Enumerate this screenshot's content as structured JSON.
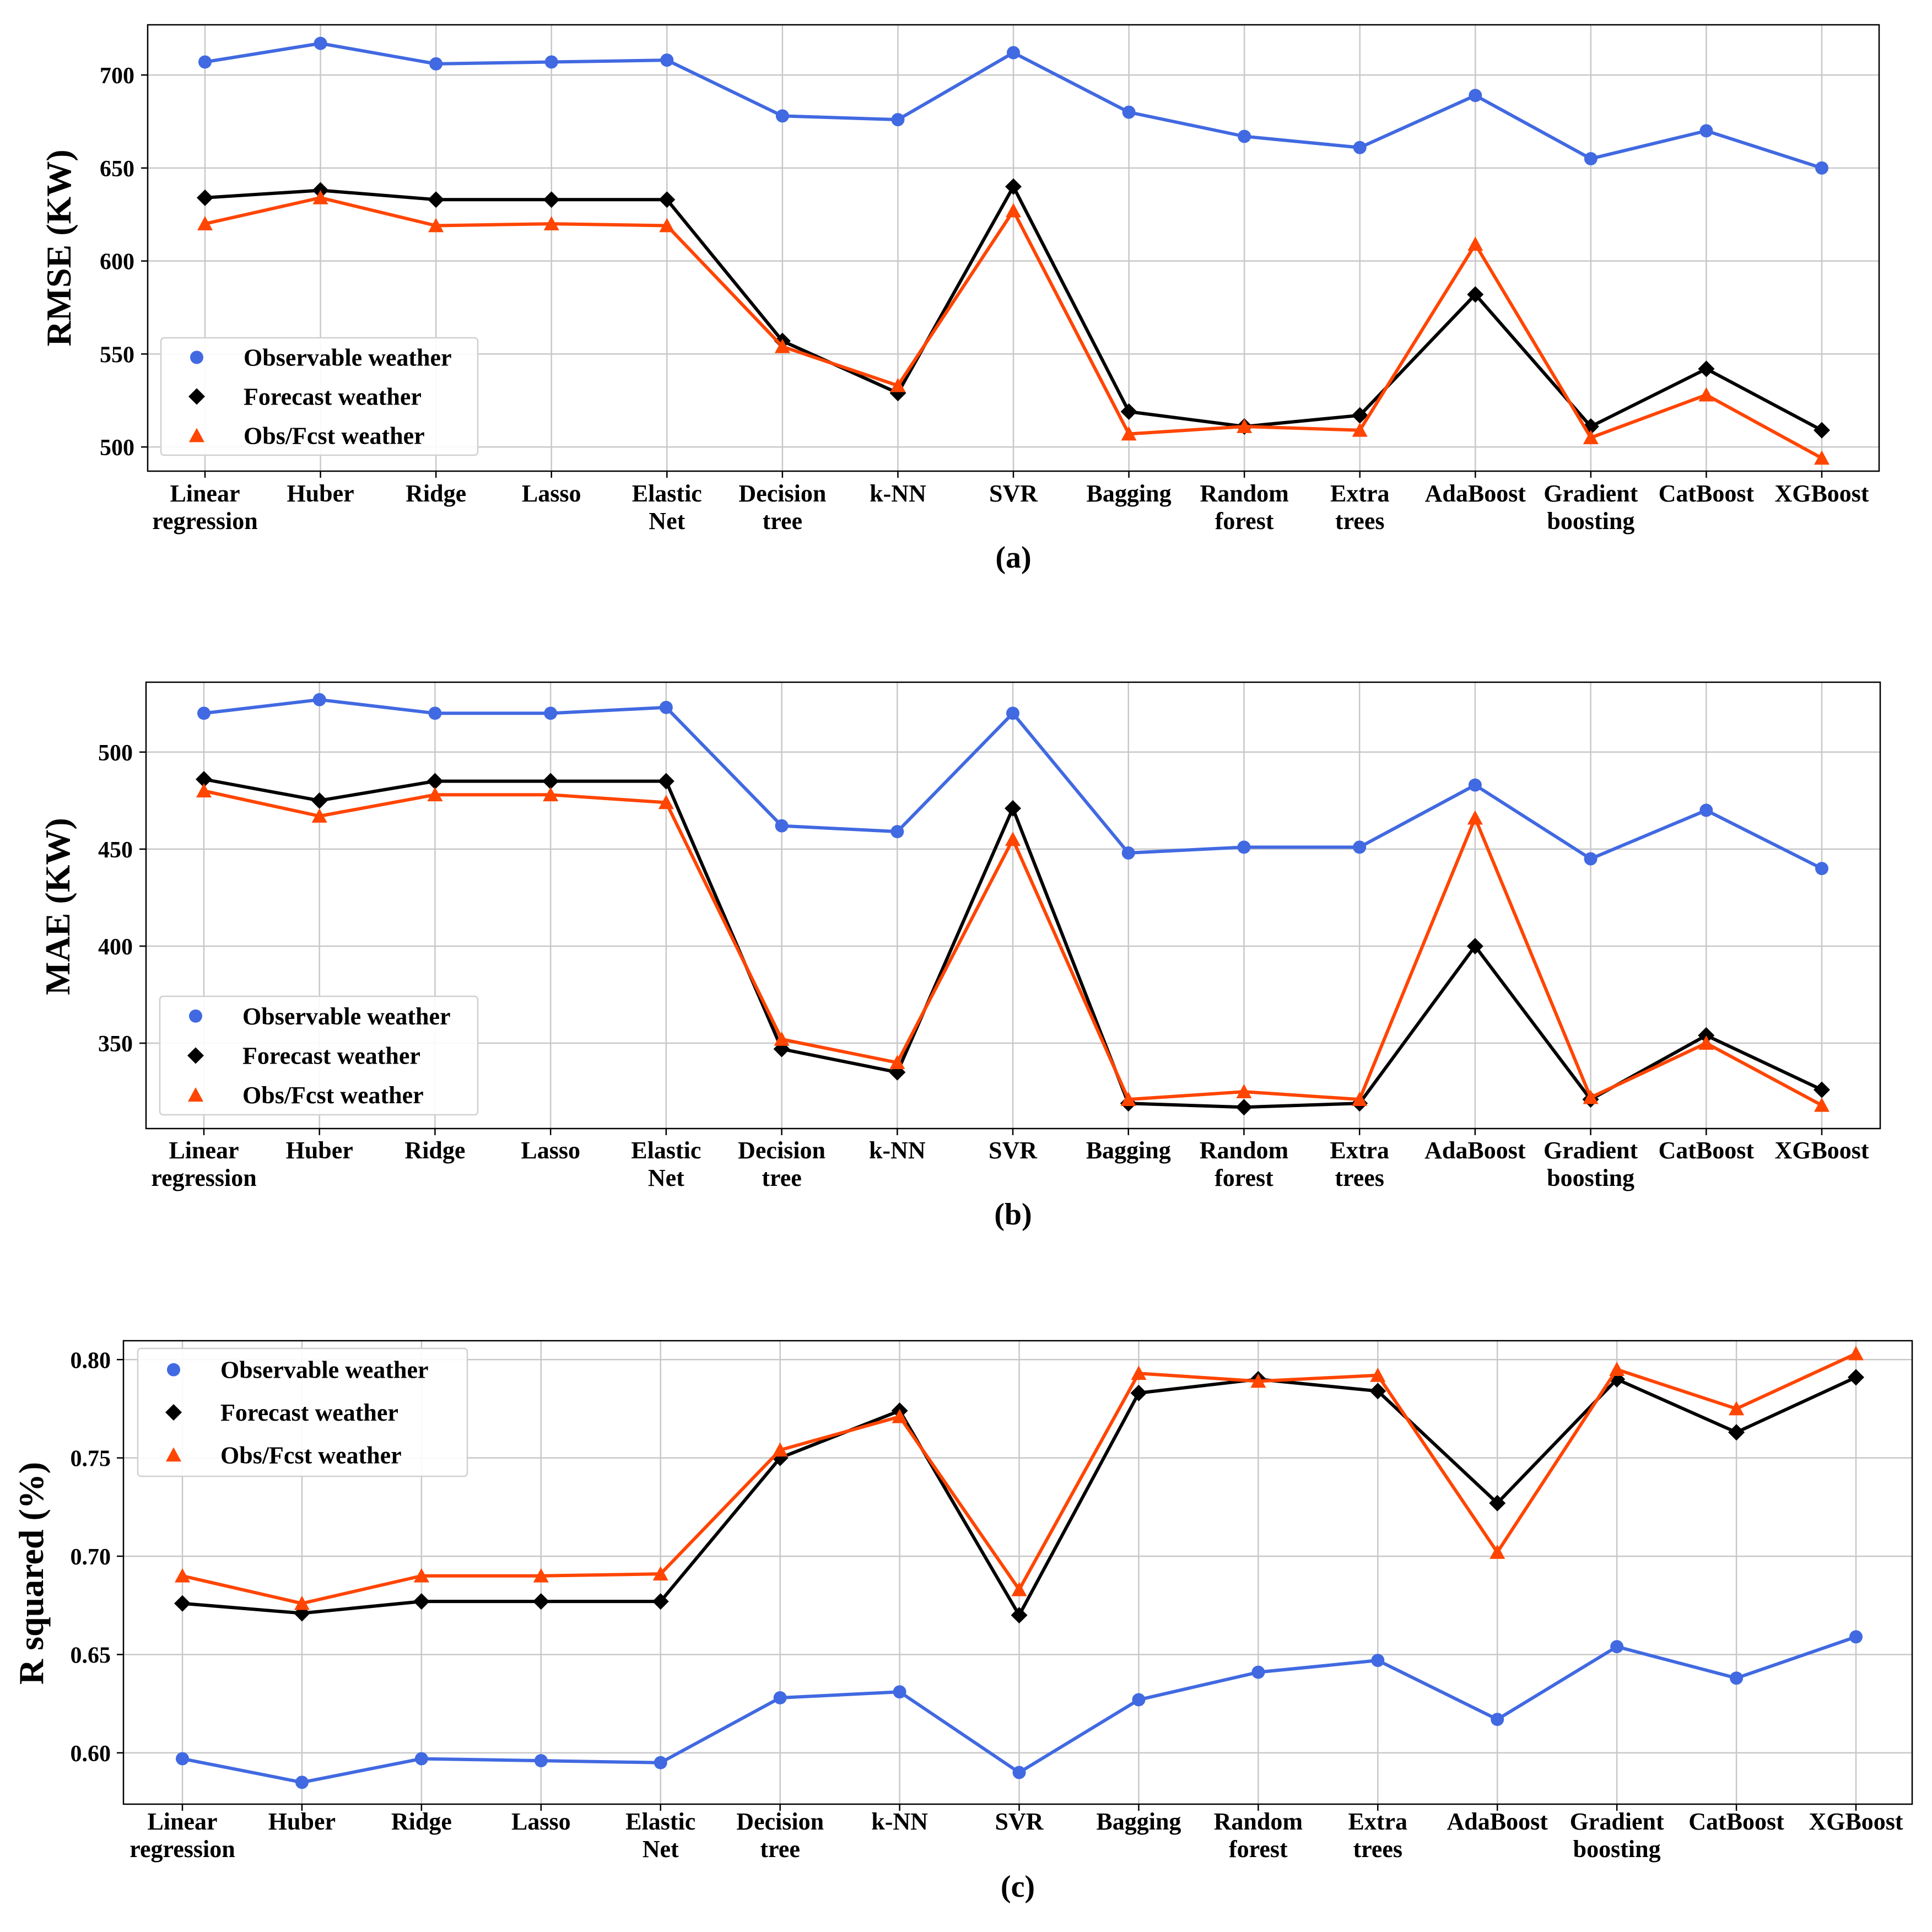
{
  "figure": {
    "category_labels": [
      [
        "Linear",
        "regression"
      ],
      [
        "Huber"
      ],
      [
        "Ridge"
      ],
      [
        "Lasso"
      ],
      [
        "Elastic",
        "Net"
      ],
      [
        "Decision",
        "tree"
      ],
      [
        "k-NN"
      ],
      [
        "SVR"
      ],
      [
        "Bagging"
      ],
      [
        "Random",
        "forest"
      ],
      [
        "Extra",
        "trees"
      ],
      [
        "AdaBoost"
      ],
      [
        "Gradient",
        "boosting"
      ],
      [
        "CatBoost"
      ],
      [
        "XGBoost"
      ]
    ],
    "legend": [
      "Observable weather",
      "Forecast weather",
      "Obs/Fcst weather"
    ]
  },
  "colors": {
    "observable": "#4169E1",
    "forecast": "#000000",
    "obs_fcst": "#FF4500",
    "grid": "#c8c8c8",
    "frame": "#000000"
  },
  "chart_data": [
    {
      "id": "a",
      "type": "line",
      "caption": "(a)",
      "title": "",
      "xlabel": "",
      "ylabel": "RMSE (KW)",
      "ylim": [
        487,
        727
      ],
      "yticks": [
        500,
        550,
        600,
        650,
        700
      ],
      "ytick_labels": [
        "500",
        "550",
        "600",
        "650",
        "700"
      ],
      "legend_position": "lower-left",
      "grid": true,
      "categories": [
        "Linear regression",
        "Huber",
        "Ridge",
        "Lasso",
        "Elastic Net",
        "Decision tree",
        "k-NN",
        "SVR",
        "Bagging",
        "Random forest",
        "Extra trees",
        "AdaBoost",
        "Gradient boosting",
        "CatBoost",
        "XGBoost"
      ],
      "series": [
        {
          "name": "Observable weather",
          "marker": "circle",
          "values": [
            707,
            717,
            706,
            707,
            708,
            678,
            676,
            712,
            680,
            667,
            661,
            689,
            655,
            670,
            650
          ]
        },
        {
          "name": "Forecast weather",
          "marker": "diamond",
          "values": [
            634,
            638,
            633,
            633,
            633,
            557,
            529,
            640,
            519,
            511,
            517,
            582,
            511,
            542,
            509
          ]
        },
        {
          "name": "Obs/Fcst weather",
          "marker": "triangle",
          "values": [
            620,
            634,
            619,
            620,
            619,
            554,
            533,
            627,
            507,
            511,
            509,
            609,
            505,
            528,
            494
          ]
        }
      ]
    },
    {
      "id": "b",
      "type": "line",
      "caption": "(b)",
      "title": "",
      "xlabel": "",
      "ylabel": "MAE (KW)",
      "ylim": [
        306,
        536
      ],
      "yticks": [
        350,
        400,
        450,
        500
      ],
      "ytick_labels": [
        "350",
        "400",
        "450",
        "500"
      ],
      "legend_position": "lower-left",
      "grid": true,
      "categories": [
        "Linear regression",
        "Huber",
        "Ridge",
        "Lasso",
        "Elastic Net",
        "Decision tree",
        "k-NN",
        "SVR",
        "Bagging",
        "Random forest",
        "Extra trees",
        "AdaBoost",
        "Gradient boosting",
        "CatBoost",
        "XGBoost"
      ],
      "series": [
        {
          "name": "Observable weather",
          "marker": "circle",
          "values": [
            520,
            527,
            520,
            520,
            523,
            462,
            459,
            520,
            448,
            451,
            451,
            483,
            445,
            470,
            440
          ]
        },
        {
          "name": "Forecast weather",
          "marker": "diamond",
          "values": [
            486,
            475,
            485,
            485,
            485,
            347,
            335,
            471,
            319,
            317,
            319,
            400,
            321,
            354,
            326
          ]
        },
        {
          "name": "Obs/Fcst weather",
          "marker": "triangle",
          "values": [
            480,
            467,
            478,
            478,
            474,
            352,
            340,
            455,
            321,
            325,
            321,
            466,
            322,
            350,
            318
          ]
        }
      ]
    },
    {
      "id": "c",
      "type": "line",
      "caption": "(c)",
      "title": "",
      "xlabel": "",
      "ylabel": "R squared (%)",
      "ylim": [
        0.5739,
        0.8096
      ],
      "yticks": [
        0.6,
        0.65,
        0.7,
        0.75,
        0.8
      ],
      "ytick_labels": [
        "0.60",
        "0.65",
        "0.70",
        "0.75",
        "0.80"
      ],
      "legend_position": "upper-left",
      "grid": true,
      "categories": [
        "Linear regression",
        "Huber",
        "Ridge",
        "Lasso",
        "Elastic Net",
        "Decision tree",
        "k-NN",
        "SVR",
        "Bagging",
        "Random forest",
        "Extra trees",
        "AdaBoost",
        "Gradient boosting",
        "CatBoost",
        "XGBoost"
      ],
      "series": [
        {
          "name": "Observable weather",
          "marker": "circle",
          "values": [
            0.597,
            0.585,
            0.597,
            0.596,
            0.595,
            0.628,
            0.631,
            0.59,
            0.627,
            0.641,
            0.647,
            0.617,
            0.654,
            0.638,
            0.659
          ]
        },
        {
          "name": "Forecast weather",
          "marker": "diamond",
          "values": [
            0.676,
            0.671,
            0.677,
            0.677,
            0.677,
            0.75,
            0.774,
            0.67,
            0.783,
            0.79,
            0.784,
            0.727,
            0.79,
            0.763,
            0.791
          ]
        },
        {
          "name": "Obs/Fcst weather",
          "marker": "triangle",
          "values": [
            0.69,
            0.676,
            0.69,
            0.69,
            0.691,
            0.754,
            0.771,
            0.683,
            0.793,
            0.789,
            0.792,
            0.702,
            0.795,
            0.775,
            0.803
          ]
        }
      ]
    }
  ]
}
